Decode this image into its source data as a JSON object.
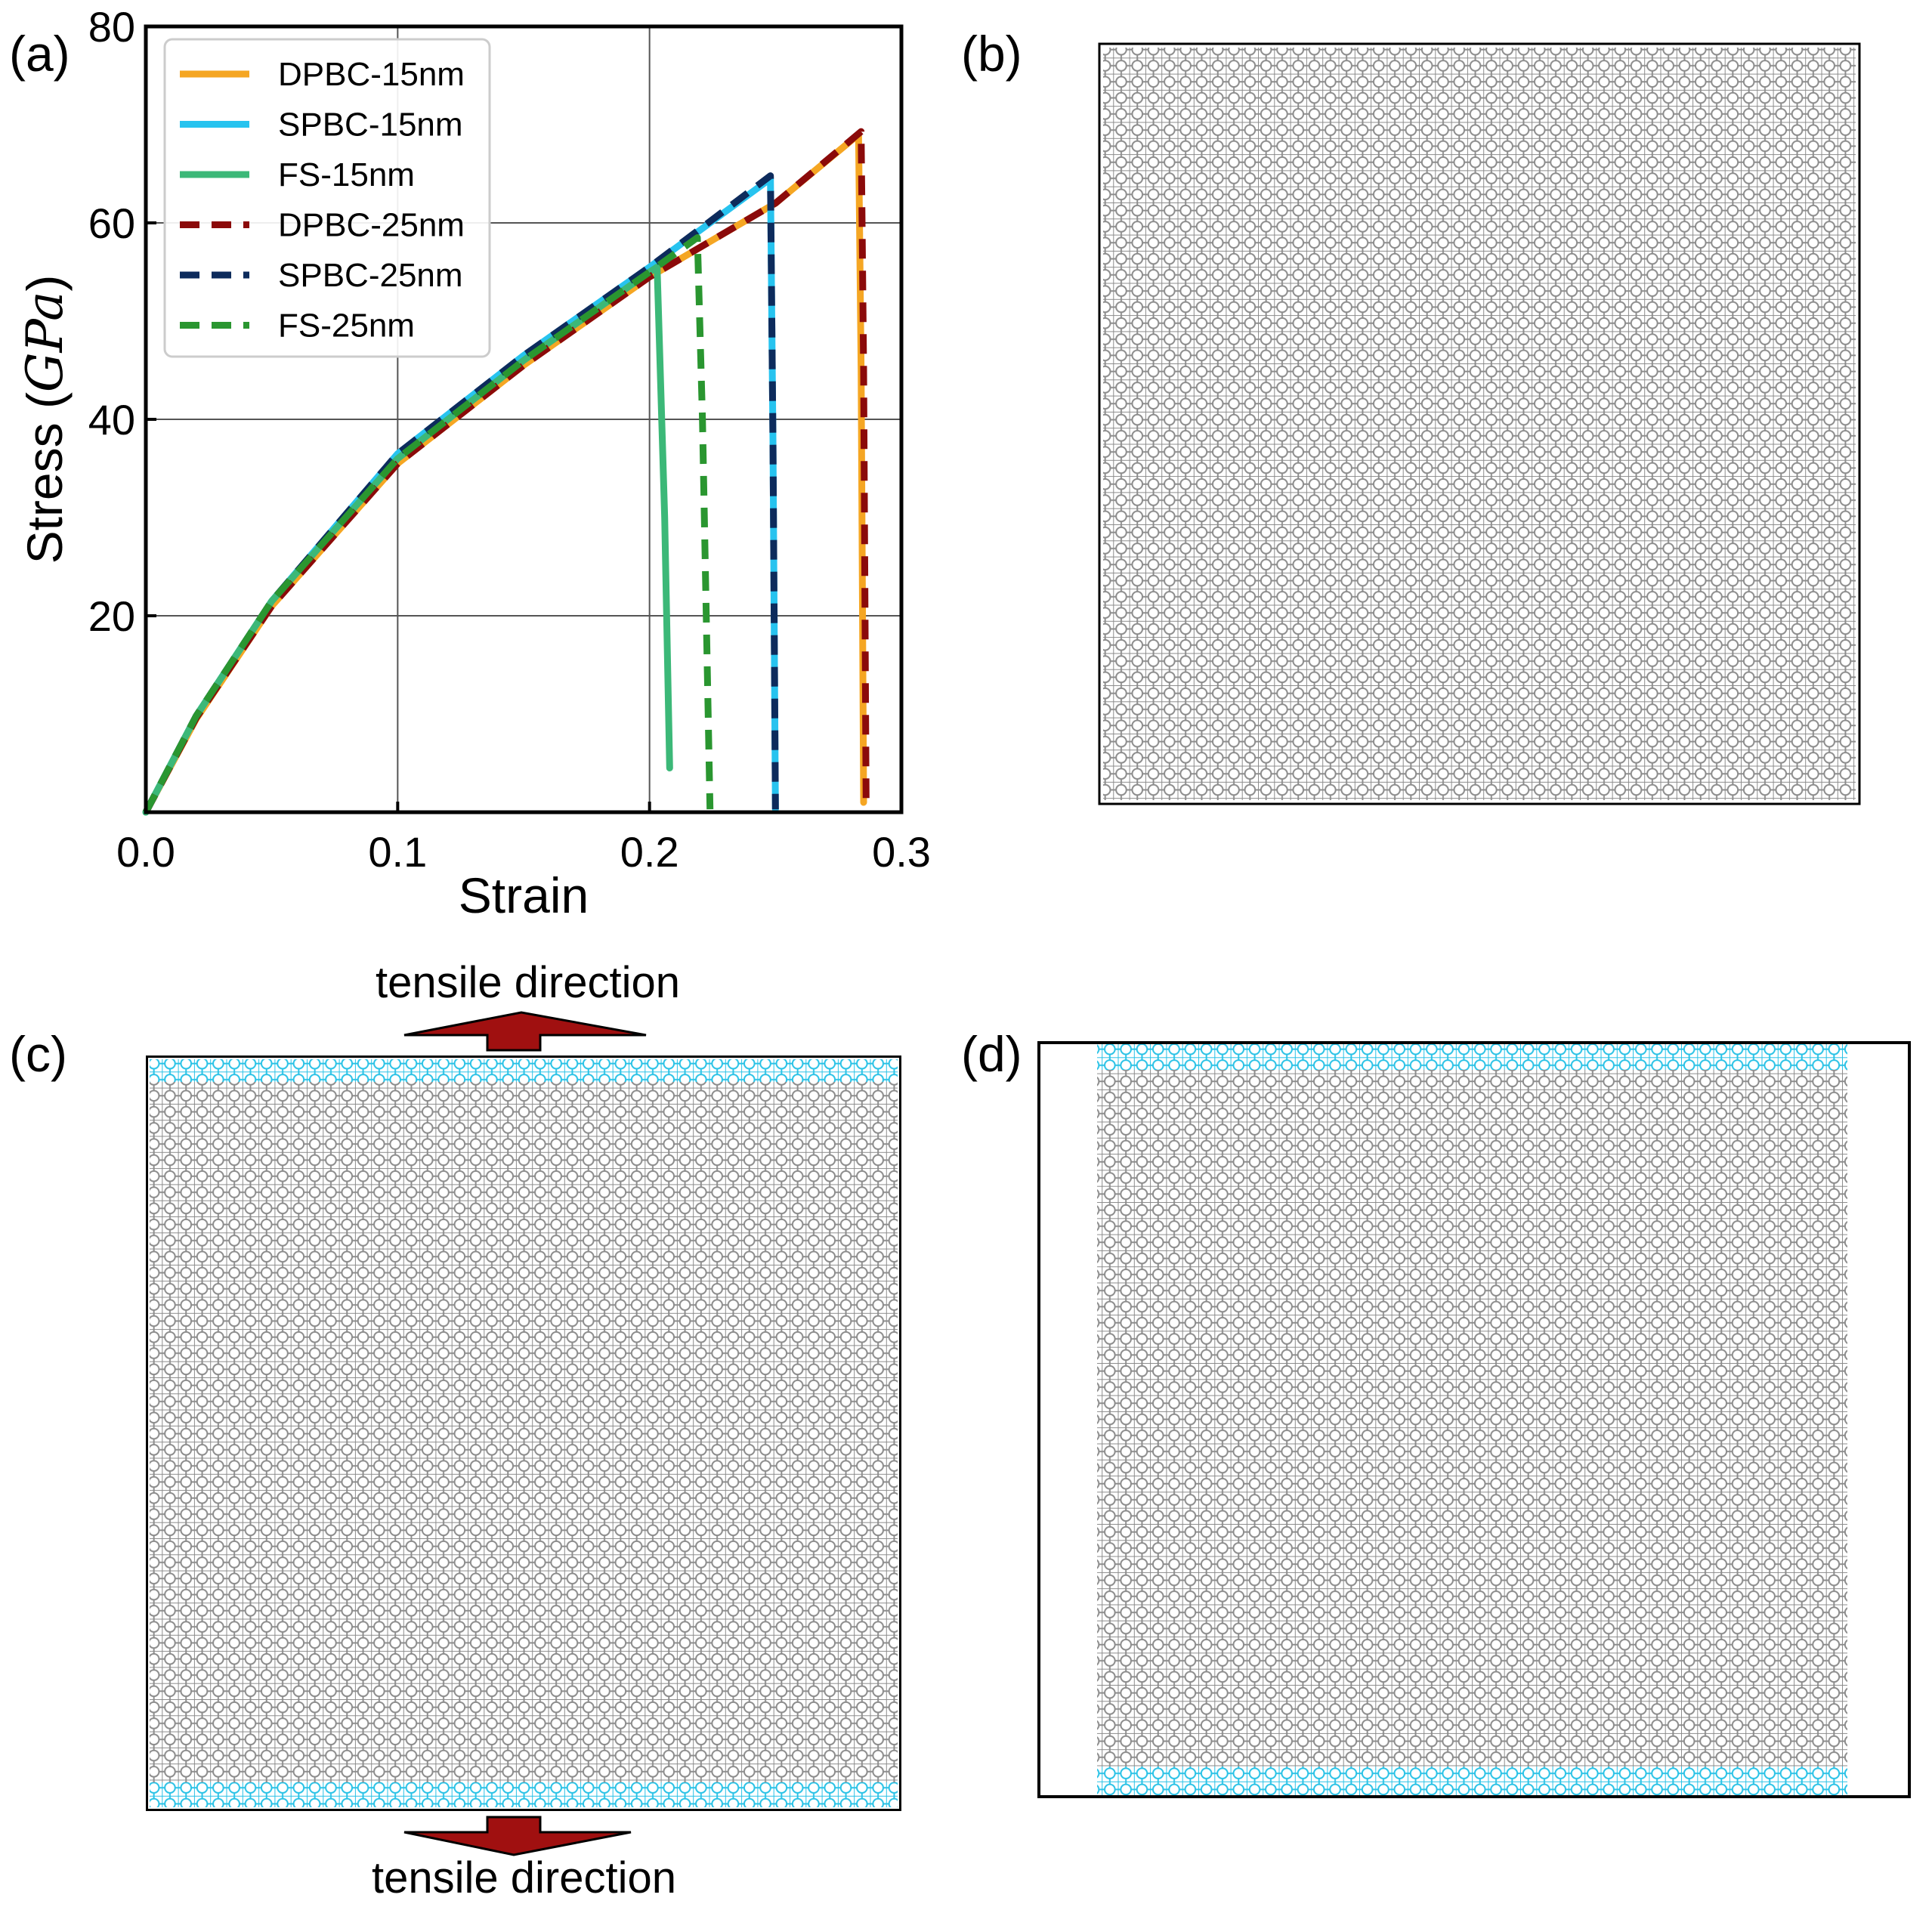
{
  "figure": {
    "panel_labels": {
      "a": "(a)",
      "b": "(b)",
      "c": "(c)",
      "d": "(d)"
    },
    "tensile_label_top": "tensile direction",
    "tensile_label_bottom": "tensile direction",
    "colors": {
      "lattice": "#8c8c8c",
      "fixed_layer": "#29c2e6",
      "arrow_fill": "#a01010",
      "arrow_outline": "#000000"
    }
  },
  "chart_data": {
    "type": "line",
    "title": "",
    "xlabel": "Strain",
    "ylabel_prefix": "Stress (",
    "ylabel_unit": "GPa",
    "ylabel_suffix": ")",
    "xlim": [
      0.0,
      0.3
    ],
    "ylim": [
      0,
      80
    ],
    "xticks": [
      0.0,
      0.1,
      0.2,
      0.3
    ],
    "xtick_labels": [
      "0.0",
      "0.1",
      "0.2",
      "0.3"
    ],
    "yticks": [
      20,
      40,
      60,
      80
    ],
    "ytick_labels": [
      "20",
      "40",
      "60",
      "80"
    ],
    "grid": true,
    "legend_position": "top-left",
    "series": [
      {
        "name": "DPBC-15nm",
        "color": "#f5a623",
        "dashed": false,
        "x": [
          0.0,
          0.02,
          0.05,
          0.1,
          0.15,
          0.2,
          0.25,
          0.283,
          0.284,
          0.285
        ],
        "y": [
          0,
          9.5,
          21,
          35.5,
          45.5,
          54.5,
          62,
          69,
          45,
          1
        ]
      },
      {
        "name": "SPBC-15nm",
        "color": "#27c3ef",
        "dashed": false,
        "x": [
          0.0,
          0.02,
          0.05,
          0.1,
          0.15,
          0.2,
          0.248,
          0.249,
          0.25
        ],
        "y": [
          0,
          9.8,
          21.5,
          36.5,
          46.5,
          55.5,
          64.5,
          38,
          0.3
        ]
      },
      {
        "name": "FS-15nm",
        "color": "#3cb878",
        "dashed": false,
        "x": [
          0.0,
          0.02,
          0.05,
          0.1,
          0.15,
          0.2,
          0.203,
          0.206,
          0.208
        ],
        "y": [
          0,
          9.8,
          21.5,
          36,
          46,
          55,
          55.5,
          30,
          4.5
        ]
      },
      {
        "name": "DPBC-25nm",
        "color": "#8b0a0a",
        "dashed": true,
        "x": [
          0.0,
          0.02,
          0.05,
          0.1,
          0.15,
          0.2,
          0.25,
          0.284,
          0.285,
          0.286
        ],
        "y": [
          0,
          9.6,
          21,
          35.5,
          45.5,
          54.5,
          62,
          69.3,
          45,
          1
        ]
      },
      {
        "name": "SPBC-25nm",
        "color": "#0d2b5c",
        "dashed": true,
        "x": [
          0.0,
          0.02,
          0.05,
          0.1,
          0.15,
          0.2,
          0.248,
          0.249,
          0.25
        ],
        "y": [
          0,
          9.8,
          21.5,
          36.5,
          46.5,
          55.5,
          64.8,
          38,
          0.3
        ]
      },
      {
        "name": "FS-25nm",
        "color": "#2a9630",
        "dashed": true,
        "x": [
          0.0,
          0.02,
          0.05,
          0.1,
          0.15,
          0.2,
          0.219,
          0.221,
          0.224
        ],
        "y": [
          0,
          9.8,
          21.5,
          36,
          46,
          55,
          58.5,
          40,
          0.3
        ]
      }
    ]
  }
}
